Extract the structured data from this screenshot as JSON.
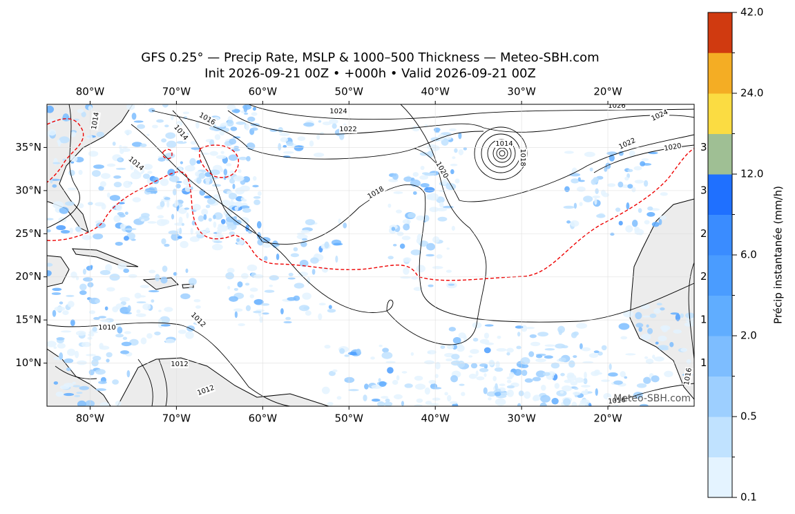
{
  "map": {
    "title": "GFS 0.25° — Precip Rate, MSLP & 1000–500 Thickness — Meteo-SBH.com",
    "subtitle": "Init 2026-09-21 00Z • +000h • Valid 2026-09-21 00Z",
    "xlim": [
      -85,
      -10
    ],
    "ylim": [
      5,
      40
    ],
    "xticks": [
      {
        "value": -80,
        "label": "80°W"
      },
      {
        "value": -70,
        "label": "70°W"
      },
      {
        "value": -60,
        "label": "60°W"
      },
      {
        "value": -50,
        "label": "50°W"
      },
      {
        "value": -40,
        "label": "40°W"
      },
      {
        "value": -30,
        "label": "30°W"
      },
      {
        "value": -20,
        "label": "20°W"
      }
    ],
    "yticks": [
      {
        "value": 35,
        "label": "35°N"
      },
      {
        "value": 30,
        "label": "30°N"
      },
      {
        "value": 25,
        "label": "25°N"
      },
      {
        "value": 20,
        "label": "20°N"
      },
      {
        "value": 15,
        "label": "15°N"
      },
      {
        "value": 10,
        "label": "10°N"
      }
    ],
    "grid": true,
    "isobar_labels": [
      1024,
      1022,
      1026,
      1024,
      1022,
      1020,
      1020,
      1018,
      1018,
      1016,
      1014,
      1014,
      1012,
      1012,
      1010,
      1012,
      1016,
      1014,
      1016,
      1014
    ],
    "watermark": "Meteo-SBH.com",
    "colorbar": {
      "label": "Précip instantanée (mm/h)",
      "colors": [
        "#e4f3ff",
        "#c0e2ff",
        "#9dcfff",
        "#7dbdff",
        "#60adff",
        "#4a9cff",
        "#3a8cff",
        "#1f70ff",
        "#9fbf94",
        "#fbdc42",
        "#f4ad24",
        "#e97d14",
        "#d03a10"
      ],
      "ticks": [
        0.1,
        0.5,
        {
          "value": 2,
          "label": "2.0"
        },
        {
          "value": 6,
          "label": "6.0"
        },
        {
          "value": 12,
          "label": "12.0"
        },
        {
          "value": 24,
          "label": "24.0"
        },
        {
          "value": 42,
          "label": "42.0"
        }
      ]
    }
  }
}
